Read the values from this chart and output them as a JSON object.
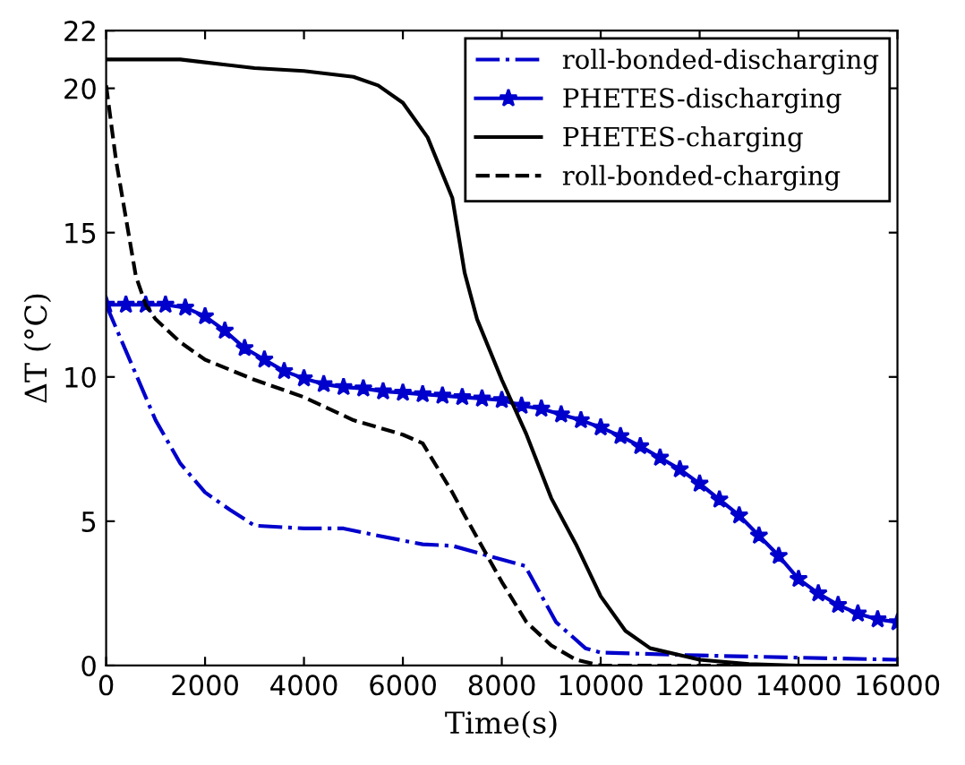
{
  "chart_data": {
    "type": "line",
    "xlabel": "Time(s)",
    "ylabel": "ΔT (°C)",
    "xlim": [
      0,
      16000
    ],
    "ylim": [
      0,
      22
    ],
    "xticks": [
      0,
      2000,
      4000,
      6000,
      8000,
      10000,
      12000,
      14000,
      16000
    ],
    "yticks": [
      0,
      5,
      10,
      15,
      20,
      22
    ],
    "grid": false,
    "legend": "top right",
    "series": [
      {
        "name": "roll-bonded-discharging",
        "color": "#0000cc",
        "line_style": "dashdot",
        "marker": "none",
        "x": [
          0,
          500,
          1000,
          1500,
          2000,
          2500,
          3000,
          4000,
          4800,
          5500,
          6400,
          7000,
          8470,
          9100,
          9690,
          10000,
          12000,
          16000
        ],
        "values": [
          12.5,
          10.5,
          8.5,
          7.0,
          6.0,
          5.4,
          4.85,
          4.75,
          4.75,
          4.5,
          4.2,
          4.15,
          3.45,
          1.5,
          0.6,
          0.45,
          0.35,
          0.2
        ]
      },
      {
        "name": "PHETES-discharging",
        "color": "#0000cc",
        "line_style": "solid",
        "marker": "star",
        "x": [
          0,
          400,
          800,
          1200,
          1600,
          2000,
          2400,
          2800,
          3200,
          3600,
          4000,
          4400,
          4800,
          5200,
          5600,
          6000,
          6400,
          6800,
          7200,
          7600,
          8000,
          8400,
          8800,
          9200,
          9600,
          10000,
          10400,
          10800,
          11200,
          11600,
          12000,
          12400,
          12800,
          13200,
          13600,
          14000,
          14400,
          14800,
          15200,
          15600,
          16000
        ],
        "values": [
          12.5,
          12.5,
          12.5,
          12.5,
          12.4,
          12.1,
          11.6,
          11.0,
          10.6,
          10.2,
          9.95,
          9.75,
          9.65,
          9.6,
          9.5,
          9.45,
          9.4,
          9.35,
          9.3,
          9.25,
          9.2,
          9.0,
          8.9,
          8.7,
          8.5,
          8.25,
          7.95,
          7.6,
          7.2,
          6.8,
          6.3,
          5.75,
          5.2,
          4.5,
          3.8,
          3.0,
          2.5,
          2.1,
          1.8,
          1.6,
          1.5
        ]
      },
      {
        "name": "PHETES-charging",
        "color": "#000000",
        "line_style": "solid",
        "marker": "none",
        "x": [
          0,
          1500,
          2000,
          3000,
          4000,
          5000,
          5500,
          6000,
          6500,
          7000,
          7250,
          7500,
          8000,
          8500,
          9000,
          9500,
          10000,
          10500,
          11000,
          12000,
          13000,
          14000,
          16000
        ],
        "values": [
          21,
          21,
          20.9,
          20.7,
          20.6,
          20.4,
          20.1,
          19.5,
          18.3,
          16.2,
          13.6,
          12.0,
          9.9,
          8.0,
          5.8,
          4.2,
          2.4,
          1.2,
          0.6,
          0.2,
          0.05,
          0,
          0
        ]
      },
      {
        "name": "roll-bonded-charging",
        "color": "#000000",
        "line_style": "dashed",
        "marker": "none",
        "x": [
          0,
          200,
          400,
          600,
          800,
          1000,
          1500,
          2000,
          3000,
          4000,
          5000,
          6000,
          6400,
          7000,
          7250,
          8000,
          8500,
          9000,
          9500,
          10000,
          16000
        ],
        "values": [
          20.1,
          17.5,
          15.5,
          13.5,
          12.5,
          12.0,
          11.2,
          10.6,
          9.9,
          9.3,
          8.5,
          8.0,
          7.7,
          6.0,
          5.2,
          2.9,
          1.5,
          0.7,
          0.2,
          0,
          0
        ]
      }
    ]
  }
}
